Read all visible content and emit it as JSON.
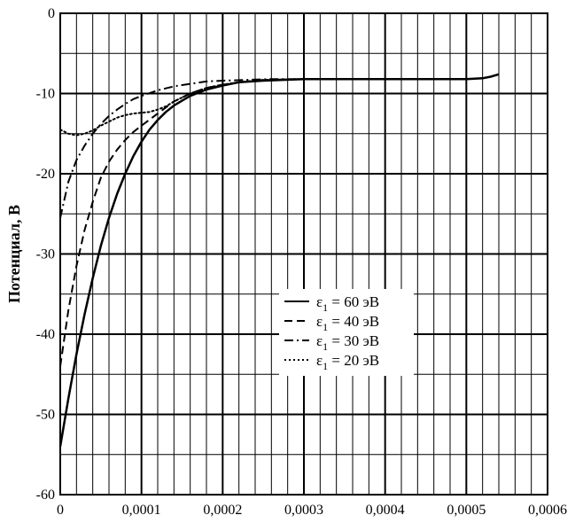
{
  "chart_data": {
    "type": "line",
    "ylabel": "Потенциал, В",
    "xlabel": "",
    "xlim": [
      0,
      0.0006
    ],
    "ylim": [
      -60,
      0
    ],
    "x_major_ticks": [
      "0",
      "0,0001",
      "0,0002",
      "0,0003",
      "0,0004",
      "0,0005",
      "0,0006"
    ],
    "y_major_ticks": [
      "0",
      "-10",
      "-20",
      "-30",
      "-40",
      "-50",
      "-60"
    ],
    "grid": true,
    "legend_position": "center-right",
    "series": [
      {
        "name_base": "ε",
        "name_sub": "1",
        "name_rest": " = 60 эВ",
        "style": "solid",
        "color": "#000000",
        "x": [
          0,
          1e-05,
          2e-05,
          3e-05,
          4e-05,
          5e-05,
          6e-05,
          7e-05,
          8e-05,
          9e-05,
          0.0001,
          0.00011,
          0.00012,
          0.00013,
          0.00014,
          0.00015,
          0.00016,
          0.00018,
          0.0002,
          0.00022,
          0.00025,
          0.0003,
          0.00035,
          0.0004,
          0.00045,
          0.0005,
          0.00052,
          0.00053,
          0.00054
        ],
        "y": [
          -54,
          -48,
          -42.5,
          -37.5,
          -33,
          -29,
          -25.5,
          -22.5,
          -20,
          -17.8,
          -16,
          -14.5,
          -13.3,
          -12.3,
          -11.5,
          -10.9,
          -10.3,
          -9.5,
          -9,
          -8.6,
          -8.4,
          -8.2,
          -8.2,
          -8.2,
          -8.2,
          -8.2,
          -8.1,
          -7.9,
          -7.6
        ]
      },
      {
        "name_base": "ε",
        "name_sub": "1",
        "name_rest": " = 40 эВ",
        "style": "dashed",
        "color": "#000000",
        "x": [
          0,
          1e-05,
          2e-05,
          3e-05,
          4e-05,
          5e-05,
          6e-05,
          7e-05,
          8e-05,
          9e-05,
          0.0001,
          0.00012,
          0.00014,
          0.00016,
          0.00018,
          0.0002,
          0.00023,
          0.00026,
          0.0003
        ],
        "y": [
          -44,
          -37,
          -31.5,
          -27,
          -23.5,
          -20.5,
          -18.5,
          -17,
          -15.8,
          -14.8,
          -14,
          -12.5,
          -11,
          -10,
          -9.3,
          -8.9,
          -8.5,
          -8.3,
          -8.2
        ]
      },
      {
        "name_base": "ε",
        "name_sub": "1",
        "name_rest": " = 30 эВ",
        "style": "dashdot",
        "color": "#000000",
        "x": [
          0,
          1e-05,
          2e-05,
          3e-05,
          4e-05,
          5e-05,
          6e-05,
          7e-05,
          8e-05,
          9e-05,
          0.0001,
          0.00012,
          0.00014,
          0.00016,
          0.00018,
          0.0002,
          0.00023,
          0.00026,
          0.0003
        ],
        "y": [
          -25.5,
          -21,
          -18.3,
          -16.5,
          -15,
          -13.8,
          -12.8,
          -12,
          -11.3,
          -10.7,
          -10.3,
          -9.6,
          -9.1,
          -8.8,
          -8.5,
          -8.4,
          -8.3,
          -8.2,
          -8.2
        ]
      },
      {
        "name_base": "ε",
        "name_sub": "1",
        "name_rest": " = 20 эВ",
        "style": "dotted",
        "color": "#000000",
        "x": [
          0,
          1e-05,
          2e-05,
          3e-05,
          4e-05,
          5e-05,
          6e-05,
          7e-05,
          8e-05,
          9e-05,
          0.0001,
          0.00011,
          0.00012,
          0.00013,
          0.00014,
          0.00015,
          0.00016,
          0.00018,
          0.0002,
          0.00022,
          0.00025,
          0.0003
        ],
        "y": [
          -14.5,
          -15,
          -15.2,
          -15,
          -14.6,
          -14,
          -13.5,
          -13,
          -12.7,
          -12.5,
          -12.4,
          -12.3,
          -12,
          -11.6,
          -11,
          -10.5,
          -10,
          -9.3,
          -8.9,
          -8.6,
          -8.3,
          -8.2
        ]
      }
    ]
  }
}
